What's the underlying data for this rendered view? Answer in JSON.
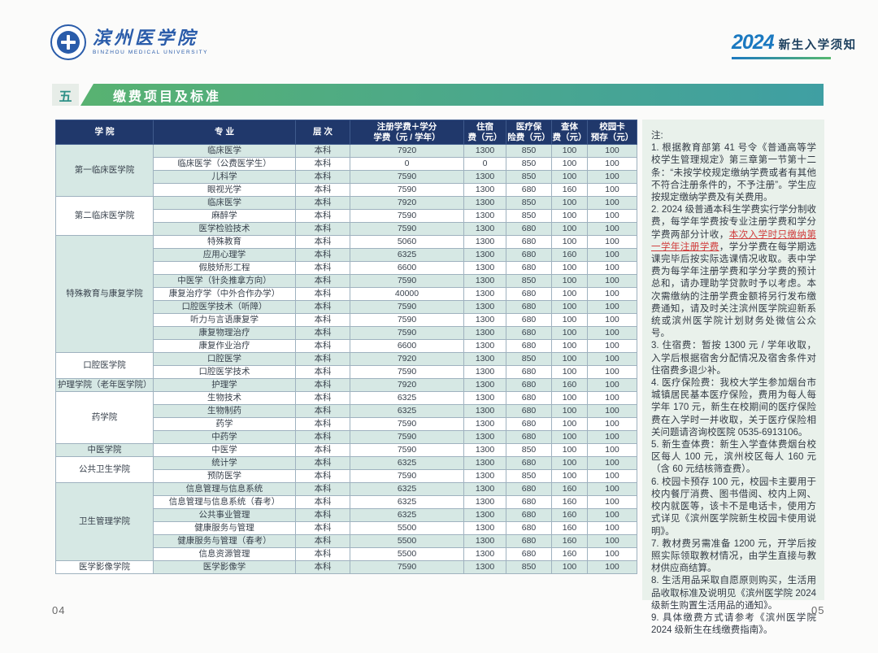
{
  "header": {
    "university_cn": "滨州医学院",
    "university_en": "BINZHOU MEDICAL UNIVERSITY",
    "year_badge": "2024",
    "notice_title": "新生入学须知"
  },
  "section": {
    "number": "五",
    "title": "缴费项目及标准"
  },
  "table": {
    "columns": [
      {
        "label": "学 院"
      },
      {
        "label": "专 业"
      },
      {
        "label": "层 次"
      },
      {
        "label": "注册学费＋学分\n学费（元 / 学年）"
      },
      {
        "label": "住宿\n费（元）"
      },
      {
        "label": "医疗保\n险费（元）"
      },
      {
        "label": "查体\n费（元）"
      },
      {
        "label": "校园卡\n预存（元）"
      }
    ],
    "groups": [
      {
        "college": "第一临床医学院",
        "rows": [
          [
            "临床医学",
            "本科",
            "7920",
            "1300",
            "850",
            "100",
            "100"
          ],
          [
            "临床医学（公费医学生）",
            "本科",
            "0",
            "0",
            "850",
            "100",
            "100"
          ],
          [
            "儿科学",
            "本科",
            "7590",
            "1300",
            "850",
            "100",
            "100"
          ],
          [
            "眼视光学",
            "本科",
            "7590",
            "1300",
            "680",
            "160",
            "100"
          ]
        ]
      },
      {
        "college": "第二临床医学院",
        "rows": [
          [
            "临床医学",
            "本科",
            "7920",
            "1300",
            "850",
            "100",
            "100"
          ],
          [
            "麻醉学",
            "本科",
            "7590",
            "1300",
            "850",
            "100",
            "100"
          ],
          [
            "医学检验技术",
            "本科",
            "7590",
            "1300",
            "680",
            "100",
            "100"
          ]
        ]
      },
      {
        "college": "特殊教育与康复学院",
        "rows": [
          [
            "特殊教育",
            "本科",
            "5060",
            "1300",
            "680",
            "100",
            "100"
          ],
          [
            "应用心理学",
            "本科",
            "6325",
            "1300",
            "680",
            "160",
            "100"
          ],
          [
            "假肢矫形工程",
            "本科",
            "6600",
            "1300",
            "680",
            "100",
            "100"
          ],
          [
            "中医学（针灸推拿方向）",
            "本科",
            "7590",
            "1300",
            "850",
            "100",
            "100"
          ],
          [
            "康复治疗学（中外合作办学）",
            "本科",
            "40000",
            "1300",
            "680",
            "100",
            "100"
          ],
          [
            "口腔医学技术（听障）",
            "本科",
            "7590",
            "1300",
            "680",
            "100",
            "100"
          ],
          [
            "听力与言语康复学",
            "本科",
            "7590",
            "1300",
            "680",
            "100",
            "100"
          ],
          [
            "康复物理治疗",
            "本科",
            "7590",
            "1300",
            "680",
            "100",
            "100"
          ],
          [
            "康复作业治疗",
            "本科",
            "6600",
            "1300",
            "680",
            "100",
            "100"
          ]
        ]
      },
      {
        "college": "口腔医学院",
        "rows": [
          [
            "口腔医学",
            "本科",
            "7920",
            "1300",
            "850",
            "100",
            "100"
          ],
          [
            "口腔医学技术",
            "本科",
            "7590",
            "1300",
            "680",
            "100",
            "100"
          ]
        ]
      },
      {
        "college": "护理学院（老年医学院）",
        "rows": [
          [
            "护理学",
            "本科",
            "7920",
            "1300",
            "680",
            "160",
            "100"
          ]
        ]
      },
      {
        "college": "药学院",
        "rows": [
          [
            "生物技术",
            "本科",
            "6325",
            "1300",
            "680",
            "100",
            "100"
          ],
          [
            "生物制药",
            "本科",
            "6325",
            "1300",
            "680",
            "100",
            "100"
          ],
          [
            "药学",
            "本科",
            "7590",
            "1300",
            "680",
            "100",
            "100"
          ],
          [
            "中药学",
            "本科",
            "7590",
            "1300",
            "680",
            "100",
            "100"
          ]
        ]
      },
      {
        "college": "中医学院",
        "rows": [
          [
            "中医学",
            "本科",
            "7590",
            "1300",
            "850",
            "100",
            "100"
          ]
        ]
      },
      {
        "college": "公共卫生学院",
        "rows": [
          [
            "统计学",
            "本科",
            "6325",
            "1300",
            "680",
            "100",
            "100"
          ],
          [
            "预防医学",
            "本科",
            "7590",
            "1300",
            "850",
            "100",
            "100"
          ]
        ]
      },
      {
        "college": "卫生管理学院",
        "rows": [
          [
            "信息管理与信息系统",
            "本科",
            "6325",
            "1300",
            "680",
            "160",
            "100"
          ],
          [
            "信息管理与信息系统（春考）",
            "本科",
            "6325",
            "1300",
            "680",
            "160",
            "100"
          ],
          [
            "公共事业管理",
            "本科",
            "6325",
            "1300",
            "680",
            "160",
            "100"
          ],
          [
            "健康服务与管理",
            "本科",
            "5500",
            "1300",
            "680",
            "160",
            "100"
          ],
          [
            "健康服务与管理（春考）",
            "本科",
            "5500",
            "1300",
            "680",
            "160",
            "100"
          ],
          [
            "信息资源管理",
            "本科",
            "5500",
            "1300",
            "680",
            "160",
            "100"
          ]
        ]
      },
      {
        "college": "医学影像学院",
        "rows": [
          [
            "医学影像学",
            "本科",
            "7590",
            "1300",
            "850",
            "100",
            "100"
          ]
        ]
      }
    ]
  },
  "notes": {
    "label": "注:",
    "items": [
      {
        "segments": [
          {
            "style": "normal",
            "text": "1. 根据教育部第 41 号令《普通高等学校学生管理规定》第三章第一节第十二条：“未按学校规定缴纳学费或者有其他不符合注册条件的，不予注册”。学生应按规定缴纳学费及有关费用。"
          }
        ]
      },
      {
        "segments": [
          {
            "style": "normal",
            "text": "2. 2024 级普通本科生学费实行学分制收费，每学年学费按专业注册学费和学分学费两部分计收，"
          },
          {
            "style": "highlight",
            "text": "本次入学时只缴纳第一学年注册学费"
          },
          {
            "style": "normal",
            "text": "，学分学费在每学期选课完毕后按实际选课情况收取。表中学费为每学年注册学费和学分学费的预计总和，请办理助学贷款时予以考虑。本次需缴纳的注册学费金额将另行发布缴费通知，请及时关注滨州医学院迎新系统或滨州医学院计划财务处微信公众号。"
          }
        ]
      },
      {
        "segments": [
          {
            "style": "normal",
            "text": "3. 住宿费：暂按 1300 元 / 学年收取，入学后根据宿舍分配情况及宿舍条件对住宿费多退少补。"
          }
        ]
      },
      {
        "segments": [
          {
            "style": "normal",
            "text": "4. 医疗保险费：我校大学生参加烟台市城镇居民基本医疗保险，费用为每人每学年 170 元，新生在校期间的医疗保险费在入学时一并收取，关于医疗保险相关问题请咨询校医院 0535-6913106。"
          }
        ]
      },
      {
        "segments": [
          {
            "style": "normal",
            "text": "5. 新生查体费：新生入学查体费烟台校区每人 100 元，滨州校区每人 160 元（含 60 元结核筛查费）。"
          }
        ]
      },
      {
        "segments": [
          {
            "style": "normal",
            "text": "6. 校园卡预存 100 元，校园卡主要用于校内餐厅消费、图书借阅、校内上网、校内就医等，该卡不是电话卡，使用方式详见《滨州医学院新生校园卡使用说明》。"
          }
        ]
      },
      {
        "segments": [
          {
            "style": "normal",
            "text": "7. 教材费另需准备 1200 元，开学后按照实际领取教材情况，由学生直接与教材供应商结算。"
          }
        ]
      },
      {
        "segments": [
          {
            "style": "normal",
            "text": "8. 生活用品采取自愿原则购买，生活用品收取标准及说明见《滨州医学院 2024 级新生购置生活用品的通知》。"
          }
        ]
      },
      {
        "segments": [
          {
            "style": "normal",
            "text": "9. 具体缴费方式请参考《滨州医学院 2024 级新生在线缴费指南》。"
          }
        ]
      }
    ]
  },
  "footer": {
    "page_left": "04",
    "page_right": "05"
  },
  "colors": {
    "table_header": "#20386b",
    "row_stripe": "#d6e8e4",
    "banner_gradient_from": "#58b271",
    "banner_gradient_to": "#3f9fa3",
    "brand_blue": "#2a5caa",
    "year_blue": "#1b79c0",
    "notes_background": "#e9f1eb",
    "highlight_red": "#d03a3a"
  }
}
